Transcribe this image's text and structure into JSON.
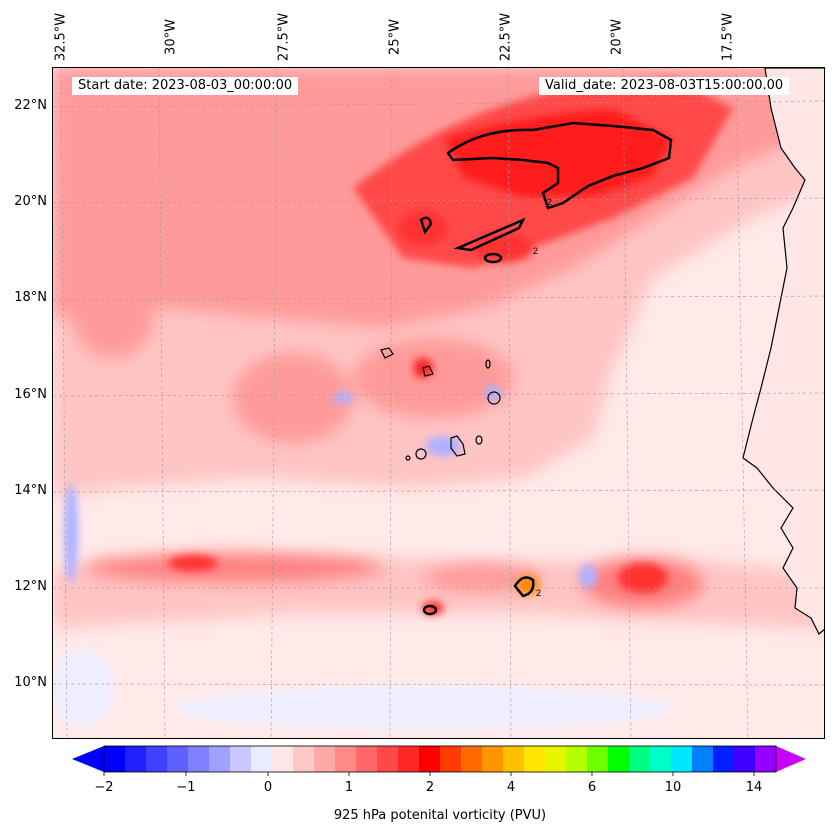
{
  "header": {
    "start_date": "Start date: 2023-08-03_00:00:00",
    "valid_date": "Valid_date: 2023-08-03T15:00:00.00"
  },
  "map": {
    "longitude_labels": [
      "32.5°W",
      "30°W",
      "27.5°W",
      "25°W",
      "22.5°W",
      "20°W",
      "17.5°W"
    ],
    "latitude_labels": [
      "22°N",
      "20°N",
      "18°N",
      "16°N",
      "14°N",
      "12°N",
      "10°N"
    ],
    "contour_label": "2",
    "field": "925 hPa potential vorticity",
    "colors": {
      "strong_positive": "#ff1a1a",
      "moderate_positive": "#ff6e6e",
      "weak_positive": "#ffb4b4",
      "background": "#ffe9e9",
      "weak_negative": "#b0b0ff",
      "land": "#ffffff",
      "coastline": "#000000"
    }
  },
  "colorbar": {
    "label": "925 hPa potenital vorticity (PVU)",
    "tick_labels": [
      "−2",
      "−1",
      "0",
      "1",
      "2",
      "4",
      "6",
      "10",
      "14"
    ],
    "colors": [
      "#0000ff",
      "#2020ff",
      "#4040ff",
      "#6060ff",
      "#8080ff",
      "#a0a0ff",
      "#c8c8ff",
      "#ebebff",
      "#ffe6e6",
      "#ffc8c8",
      "#ffa8a8",
      "#ff8888",
      "#ff6868",
      "#ff4848",
      "#ff2828",
      "#ff0000",
      "#ff3c00",
      "#ff6a00",
      "#ff9600",
      "#ffc000",
      "#ffe600",
      "#e6f500",
      "#b4ff00",
      "#6eff00",
      "#00ff00",
      "#00ff80",
      "#00ffc8",
      "#00e6ff",
      "#0080ff",
      "#0020ff",
      "#4000ff",
      "#9600ff"
    ],
    "extend_left_color": "#0000ff",
    "extend_right_color": "#c800ff"
  }
}
